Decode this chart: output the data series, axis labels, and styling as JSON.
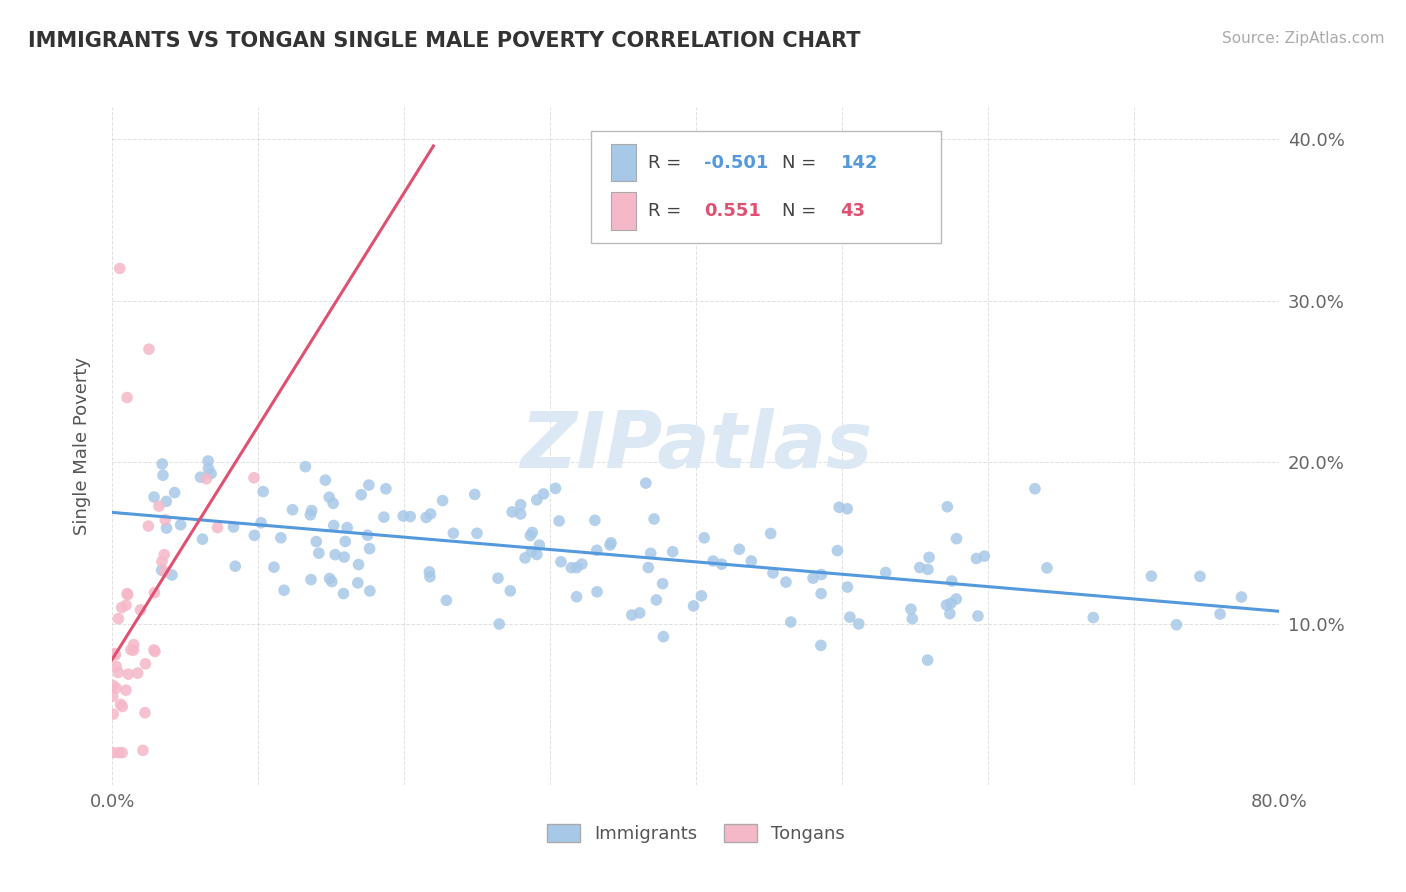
{
  "title": "IMMIGRANTS VS TONGAN SINGLE MALE POVERTY CORRELATION CHART",
  "source": "Source: ZipAtlas.com",
  "ylabel": "Single Male Poverty",
  "xlim": [
    0.0,
    0.8
  ],
  "ylim": [
    0.0,
    0.42
  ],
  "xtick_positions": [
    0.0,
    0.1,
    0.2,
    0.3,
    0.4,
    0.5,
    0.6,
    0.7,
    0.8
  ],
  "xticklabels": [
    "0.0%",
    "",
    "",
    "",
    "",
    "",
    "",
    "",
    "80.0%"
  ],
  "ytick_positions": [
    0.1,
    0.2,
    0.3,
    0.4
  ],
  "ytick_labels_right": [
    "10.0%",
    "20.0%",
    "30.0%",
    "40.0%"
  ],
  "immigrants_R": -0.501,
  "immigrants_N": 142,
  "tongans_R": 0.551,
  "tongans_N": 43,
  "immigrants_dot_color": "#a8c8e8",
  "tongans_dot_color": "#f5b8c8",
  "immigrants_line_color": "#5599dd",
  "tongans_line_color": "#e05070",
  "legend_box_color": "#cccccc",
  "watermark_color": "#dde8f5",
  "background_color": "#ffffff",
  "grid_color": "#cccccc"
}
